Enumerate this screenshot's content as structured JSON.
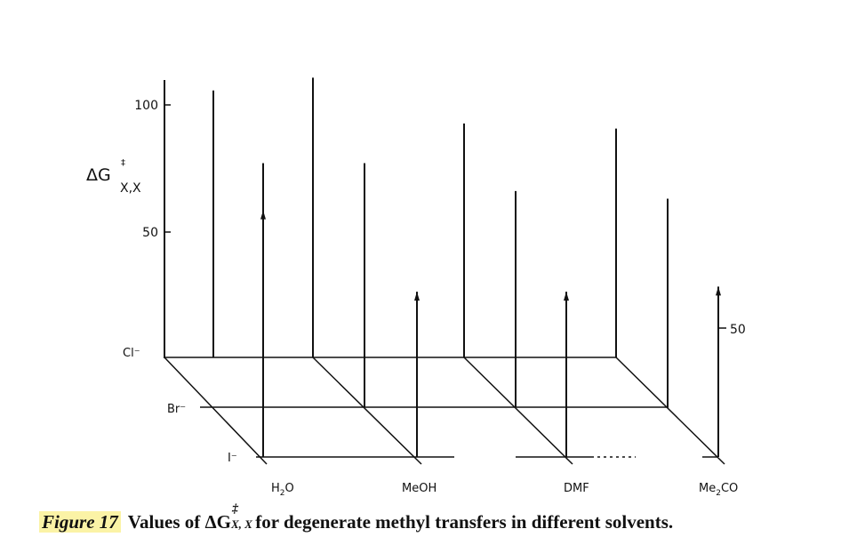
{
  "chart_data": {
    "type": "bar",
    "subtype": "3d-stick",
    "ylabel_main": "ΔG",
    "ylabel_sup": "‡",
    "ylabel_sub": "X,X",
    "yticks": [
      "100",
      "50"
    ],
    "depth_tick": "50",
    "leaving_groups": [
      "Cl⁻",
      "Br⁻",
      "I⁻"
    ],
    "solvents": [
      {
        "name": "H₂O",
        "sub_base": "H",
        "sub_num": "2",
        "sub_tail": "O"
      },
      {
        "name": "MeOH"
      },
      {
        "name": "DMF"
      },
      {
        "name": "Me₂CO",
        "sub_base": "Me",
        "sub_num": "2",
        "sub_tail": "CO"
      }
    ],
    "series": [
      {
        "name": "Cl⁻",
        "values": [
          105,
          110,
          92,
          90
        ]
      },
      {
        "name": "Br⁻",
        "values": [
          96,
          96,
          85,
          82
        ]
      },
      {
        "name": "I⁻",
        "values": [
          97,
          65,
          65,
          67
        ]
      }
    ],
    "ylim": [
      0,
      120
    ]
  },
  "caption": {
    "label": "Figure 17",
    "text_before": "Values of ΔG",
    "sup": "‡",
    "sub": "X, X",
    "text_after": " for degenerate methyl transfers in different solvents."
  }
}
